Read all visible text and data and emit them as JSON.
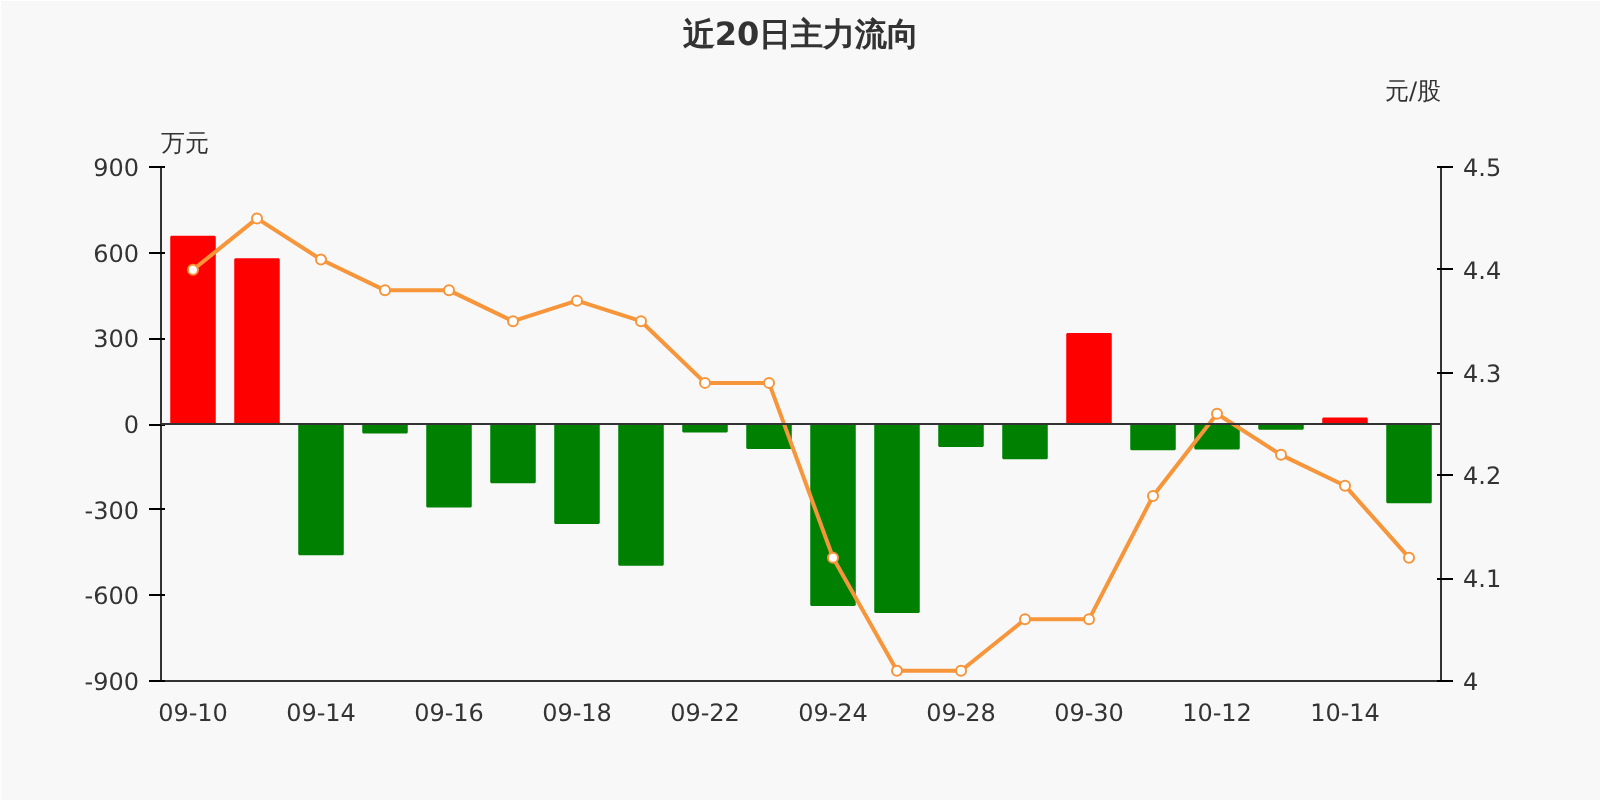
{
  "chart_data": {
    "type": "bar",
    "title": "近20日主力流向",
    "ylabel": "万元",
    "y2label": "元/股",
    "categories": [
      "09-10",
      null,
      "09-14",
      null,
      "09-16",
      null,
      "09-18",
      null,
      "09-22",
      null,
      "09-24",
      null,
      "09-28",
      null,
      "09-30",
      null,
      "10-12",
      null,
      "10-14",
      null
    ],
    "series": [
      {
        "values": [
          656,
          577,
          -456,
          -30,
          -289,
          -204,
          -347,
          -493,
          -26,
          -84,
          -634,
          -658,
          -77,
          -120,
          315,
          -88,
          -86,
          -17,
          19,
          -274
        ],
        "colors": [
          "#ff0000",
          "#ff0000",
          "#008000",
          "#008000",
          "#008000",
          "#008000",
          "#008000",
          "#008000",
          "#008000",
          "#008000",
          "#008000",
          "#008000",
          "#008000",
          "#008000",
          "#ff0000",
          "#008000",
          "#008000",
          "#008000",
          "#ff0000",
          "#008000"
        ]
      },
      {
        "type": "line",
        "axis": "y2",
        "color": "#f7953a",
        "marker": "circle",
        "values": [
          4.4,
          4.45,
          4.41,
          4.38,
          4.38,
          4.35,
          4.37,
          4.35,
          4.29,
          4.29,
          4.12,
          4.01,
          4.01,
          4.06,
          4.06,
          4.18,
          4.26,
          4.22,
          4.19,
          4.12
        ]
      }
    ],
    "ylim": [
      -900,
      900
    ],
    "yticks": [
      -900,
      -600,
      -300,
      0,
      300,
      600,
      900
    ],
    "y2lim": [
      4,
      4.5
    ],
    "y2ticks": [
      4,
      4.1,
      4.2,
      4.3,
      4.4,
      4.5
    ],
    "grid": false,
    "ref_lines": [
      {
        "axis": "y",
        "value": 0,
        "color": "#333333"
      }
    ]
  }
}
